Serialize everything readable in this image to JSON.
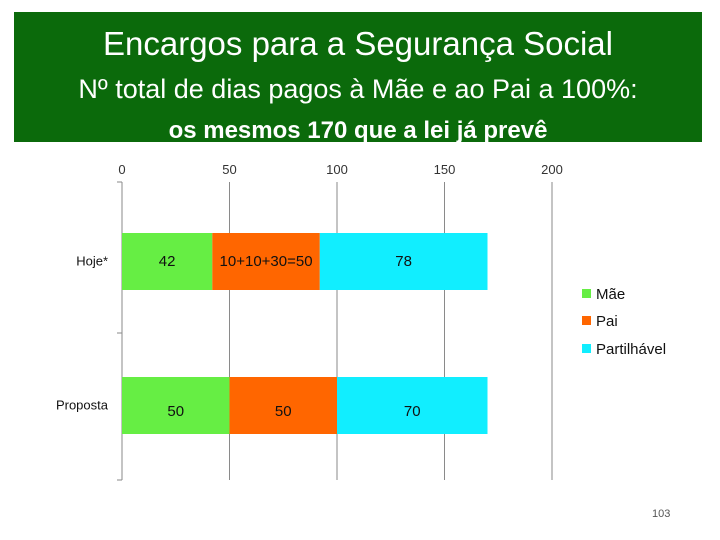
{
  "banner": {
    "title": "Encargos para a Segurança Social",
    "line2": "Nº total de dias pagos à Mãe e ao Pai a 100%:",
    "line3": "os mesmos 170 que a lei já prevê"
  },
  "page_number": "103",
  "chart_data": {
    "type": "bar",
    "orientation": "horizontal",
    "stacked": true,
    "title": "",
    "xlabel": "",
    "ylabel": "",
    "xlim": [
      0,
      200
    ],
    "x_ticks": [
      "0",
      "50",
      "100",
      "150",
      "200"
    ],
    "categories": [
      "Hoje*",
      "Proposta"
    ],
    "grid": true,
    "legend_position": "right",
    "series": [
      {
        "name": "Mãe",
        "color": "#66ee44",
        "values": [
          42,
          50
        ],
        "labels": [
          "42",
          "50"
        ]
      },
      {
        "name": "Pai",
        "color": "#ff6600",
        "values": [
          50,
          50
        ],
        "labels": [
          "10+10+30=50",
          "50"
        ]
      },
      {
        "name": "Partilhável",
        "color": "#11eeff",
        "values": [
          78,
          70
        ],
        "labels": [
          "78",
          "70"
        ]
      }
    ]
  }
}
